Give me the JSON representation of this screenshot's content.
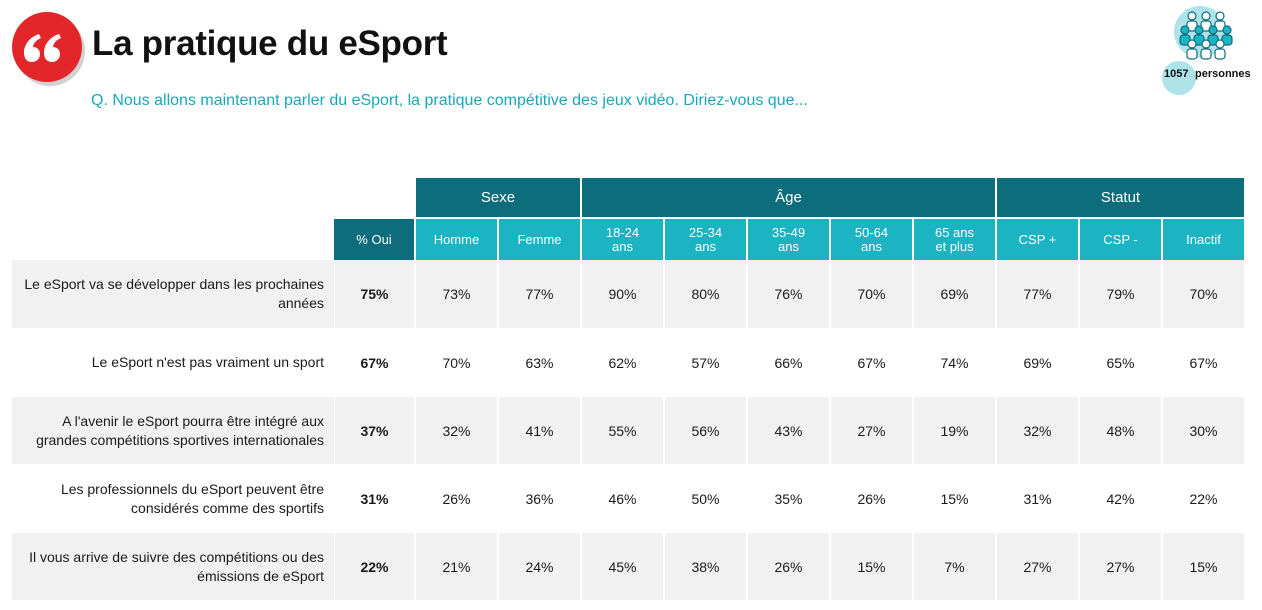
{
  "header": {
    "logo_icon": "quote-mark-icon",
    "title": "La pratique du eSport",
    "question": "Q. Nous allons maintenant parler du eSport, la pratique compétitive des jeux vidéo. Diriez-vous que..."
  },
  "sample": {
    "icon": "people-group-icon",
    "count": "1057",
    "label": "personnes"
  },
  "colors": {
    "accent_red": "#e3262a",
    "header_dark": "#0e6d7c",
    "header_light": "#1cb3c3",
    "question_text": "#1aa8b8",
    "row_shade": "#f1f1f1"
  },
  "table": {
    "groups": [
      "Sexe",
      "Âge",
      "Statut"
    ],
    "oui_label": "% Oui",
    "subheaders": {
      "homme": "Homme",
      "femme": "Femme",
      "a1824_1": "18-24",
      "a1824_2": "ans",
      "a2534_1": "25-34",
      "a2534_2": "ans",
      "a3549_1": "35-49",
      "a3549_2": "ans",
      "a5064_1": "50-64",
      "a5064_2": "ans",
      "a65_1": "65 ans",
      "a65_2": "et plus",
      "cspp": "CSP +",
      "cspm": "CSP -",
      "inactif": "Inactif"
    },
    "rows": [
      {
        "label_1": "Le eSport va se développer dans les prochaines",
        "label_2": "années",
        "oui": "75%",
        "values": [
          "73%",
          "77%",
          "90%",
          "80%",
          "76%",
          "70%",
          "69%",
          "77%",
          "79%",
          "70%"
        ]
      },
      {
        "label_1": "Le eSport n'est pas vraiment un sport",
        "label_2": "",
        "oui": "67%",
        "values": [
          "70%",
          "63%",
          "62%",
          "57%",
          "66%",
          "67%",
          "74%",
          "69%",
          "65%",
          "67%"
        ]
      },
      {
        "label_1": "A l'avenir le eSport pourra être intégré aux",
        "label_2": "grandes compétitions sportives internationales",
        "oui": "37%",
        "values": [
          "32%",
          "41%",
          "55%",
          "56%",
          "43%",
          "27%",
          "19%",
          "32%",
          "48%",
          "30%"
        ]
      },
      {
        "label_1": "Les professionnels du eSport peuvent être",
        "label_2": "considérés comme des sportifs",
        "oui": "31%",
        "values": [
          "26%",
          "36%",
          "46%",
          "50%",
          "35%",
          "26%",
          "15%",
          "31%",
          "42%",
          "22%"
        ]
      },
      {
        "label_1": "Il vous arrive de suivre des compétitions ou des",
        "label_2": "émissions de eSport",
        "oui": "22%",
        "values": [
          "21%",
          "24%",
          "45%",
          "38%",
          "26%",
          "15%",
          "7%",
          "27%",
          "27%",
          "15%"
        ]
      }
    ]
  }
}
